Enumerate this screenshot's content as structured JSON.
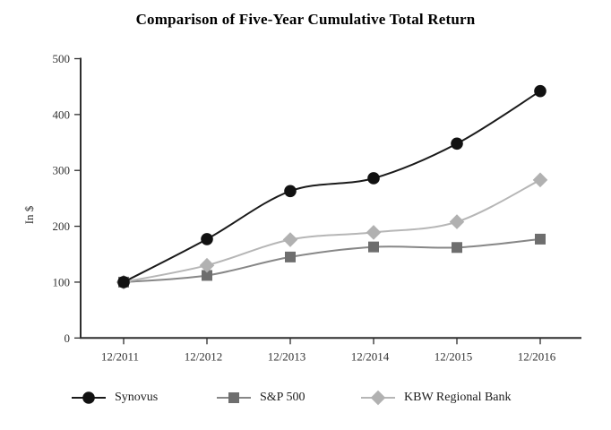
{
  "title": "Comparison of Five-Year Cumulative Total Return",
  "axes": {
    "ylabel": "In $",
    "yticks": [
      0,
      100,
      200,
      300,
      400,
      500
    ],
    "ylim": [
      0,
      500
    ],
    "axis_color": "#2e2e2e",
    "tick_text_color": "#333333"
  },
  "chart_data": {
    "type": "line",
    "title": "Comparison of Five-Year Cumulative Total Return",
    "xlabel": "",
    "ylabel": "In $",
    "ylim": [
      0,
      500
    ],
    "yticks": [
      0,
      100,
      200,
      300,
      400,
      500
    ],
    "grid": false,
    "legend_position": "bottom",
    "categories": [
      "12/2011",
      "12/2012",
      "12/2013",
      "12/2014",
      "12/2015",
      "12/2016"
    ],
    "series": [
      {
        "name": "S&P 500",
        "marker": "square",
        "marker_color": "#6e6e6e",
        "line_color": "#878787",
        "values": [
          100,
          112,
          145,
          163,
          162,
          177
        ]
      },
      {
        "name": "KBW Regional Bank",
        "marker": "diamond",
        "marker_color": "#b1b1b1",
        "line_color": "#b6b6b6",
        "values": [
          100,
          130,
          176,
          189,
          208,
          283
        ]
      },
      {
        "name": "Synovus",
        "marker": "circle",
        "marker_color": "#111111",
        "line_color": "#1a1a1a",
        "values": [
          100,
          177,
          263,
          286,
          348,
          442
        ]
      }
    ],
    "legend_order": [
      "Synovus",
      "S&P 500",
      "KBW Regional Bank"
    ]
  }
}
